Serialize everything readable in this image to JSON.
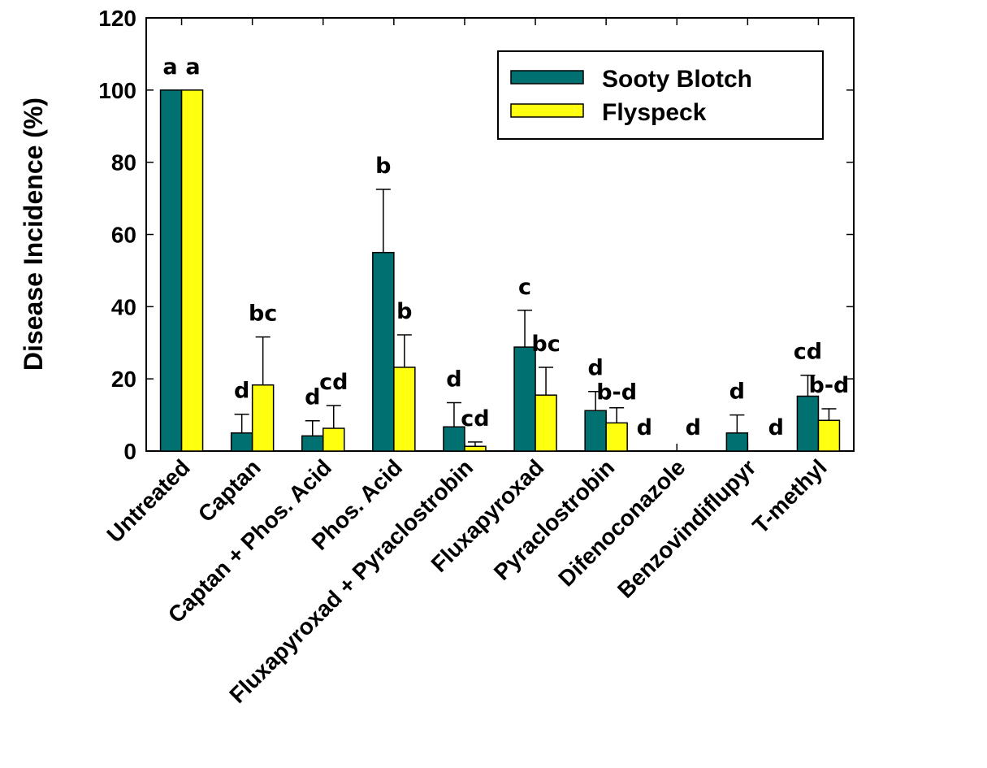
{
  "chart_data": {
    "type": "bar",
    "ylabel": "Disease Incidence (%)",
    "xlabel": "",
    "ylim": [
      0,
      120
    ],
    "yticks": [
      "0",
      "20",
      "40",
      "60",
      "80",
      "100",
      "120"
    ],
    "categories": [
      "Untreated",
      "Captan",
      "Captan + Phos. Acid",
      "Phos. Acid",
      "Fluxapyroxad + Pyraclostrobin",
      "Fluxapyroxad",
      "Pyraclostrobin",
      "Difenoconazole",
      "Benzovindiflupyr",
      "T-methyl"
    ],
    "series": [
      {
        "name": "Sooty Blotch",
        "color": "#007070",
        "values": [
          100,
          5,
          4.2,
          55,
          6.7,
          28.8,
          11.2,
          0,
          5,
          15.2
        ],
        "errors": [
          0,
          5.2,
          4.2,
          17.5,
          6.7,
          10.2,
          5.3,
          0,
          5,
          5.8
        ],
        "letters": [
          "a",
          "d",
          "d",
          "b",
          "d",
          "c",
          "d",
          "d",
          "d",
          "cd"
        ]
      },
      {
        "name": "Flyspeck",
        "color": "#ffff10",
        "values": [
          100,
          18.3,
          6.3,
          23.2,
          1.3,
          15.5,
          7.8,
          0,
          0,
          8.5
        ],
        "errors": [
          0,
          13.3,
          6.3,
          9,
          1.2,
          7.7,
          4.2,
          0,
          0,
          3.2
        ],
        "letters": [
          "a",
          "bc",
          "cd",
          "b",
          "cd",
          "bc",
          "b-d",
          "d",
          "d",
          "b-d"
        ]
      }
    ],
    "legend": {
      "position": "top-right",
      "entries": [
        "Sooty Blotch",
        "Flyspeck"
      ]
    },
    "grid": false
  }
}
